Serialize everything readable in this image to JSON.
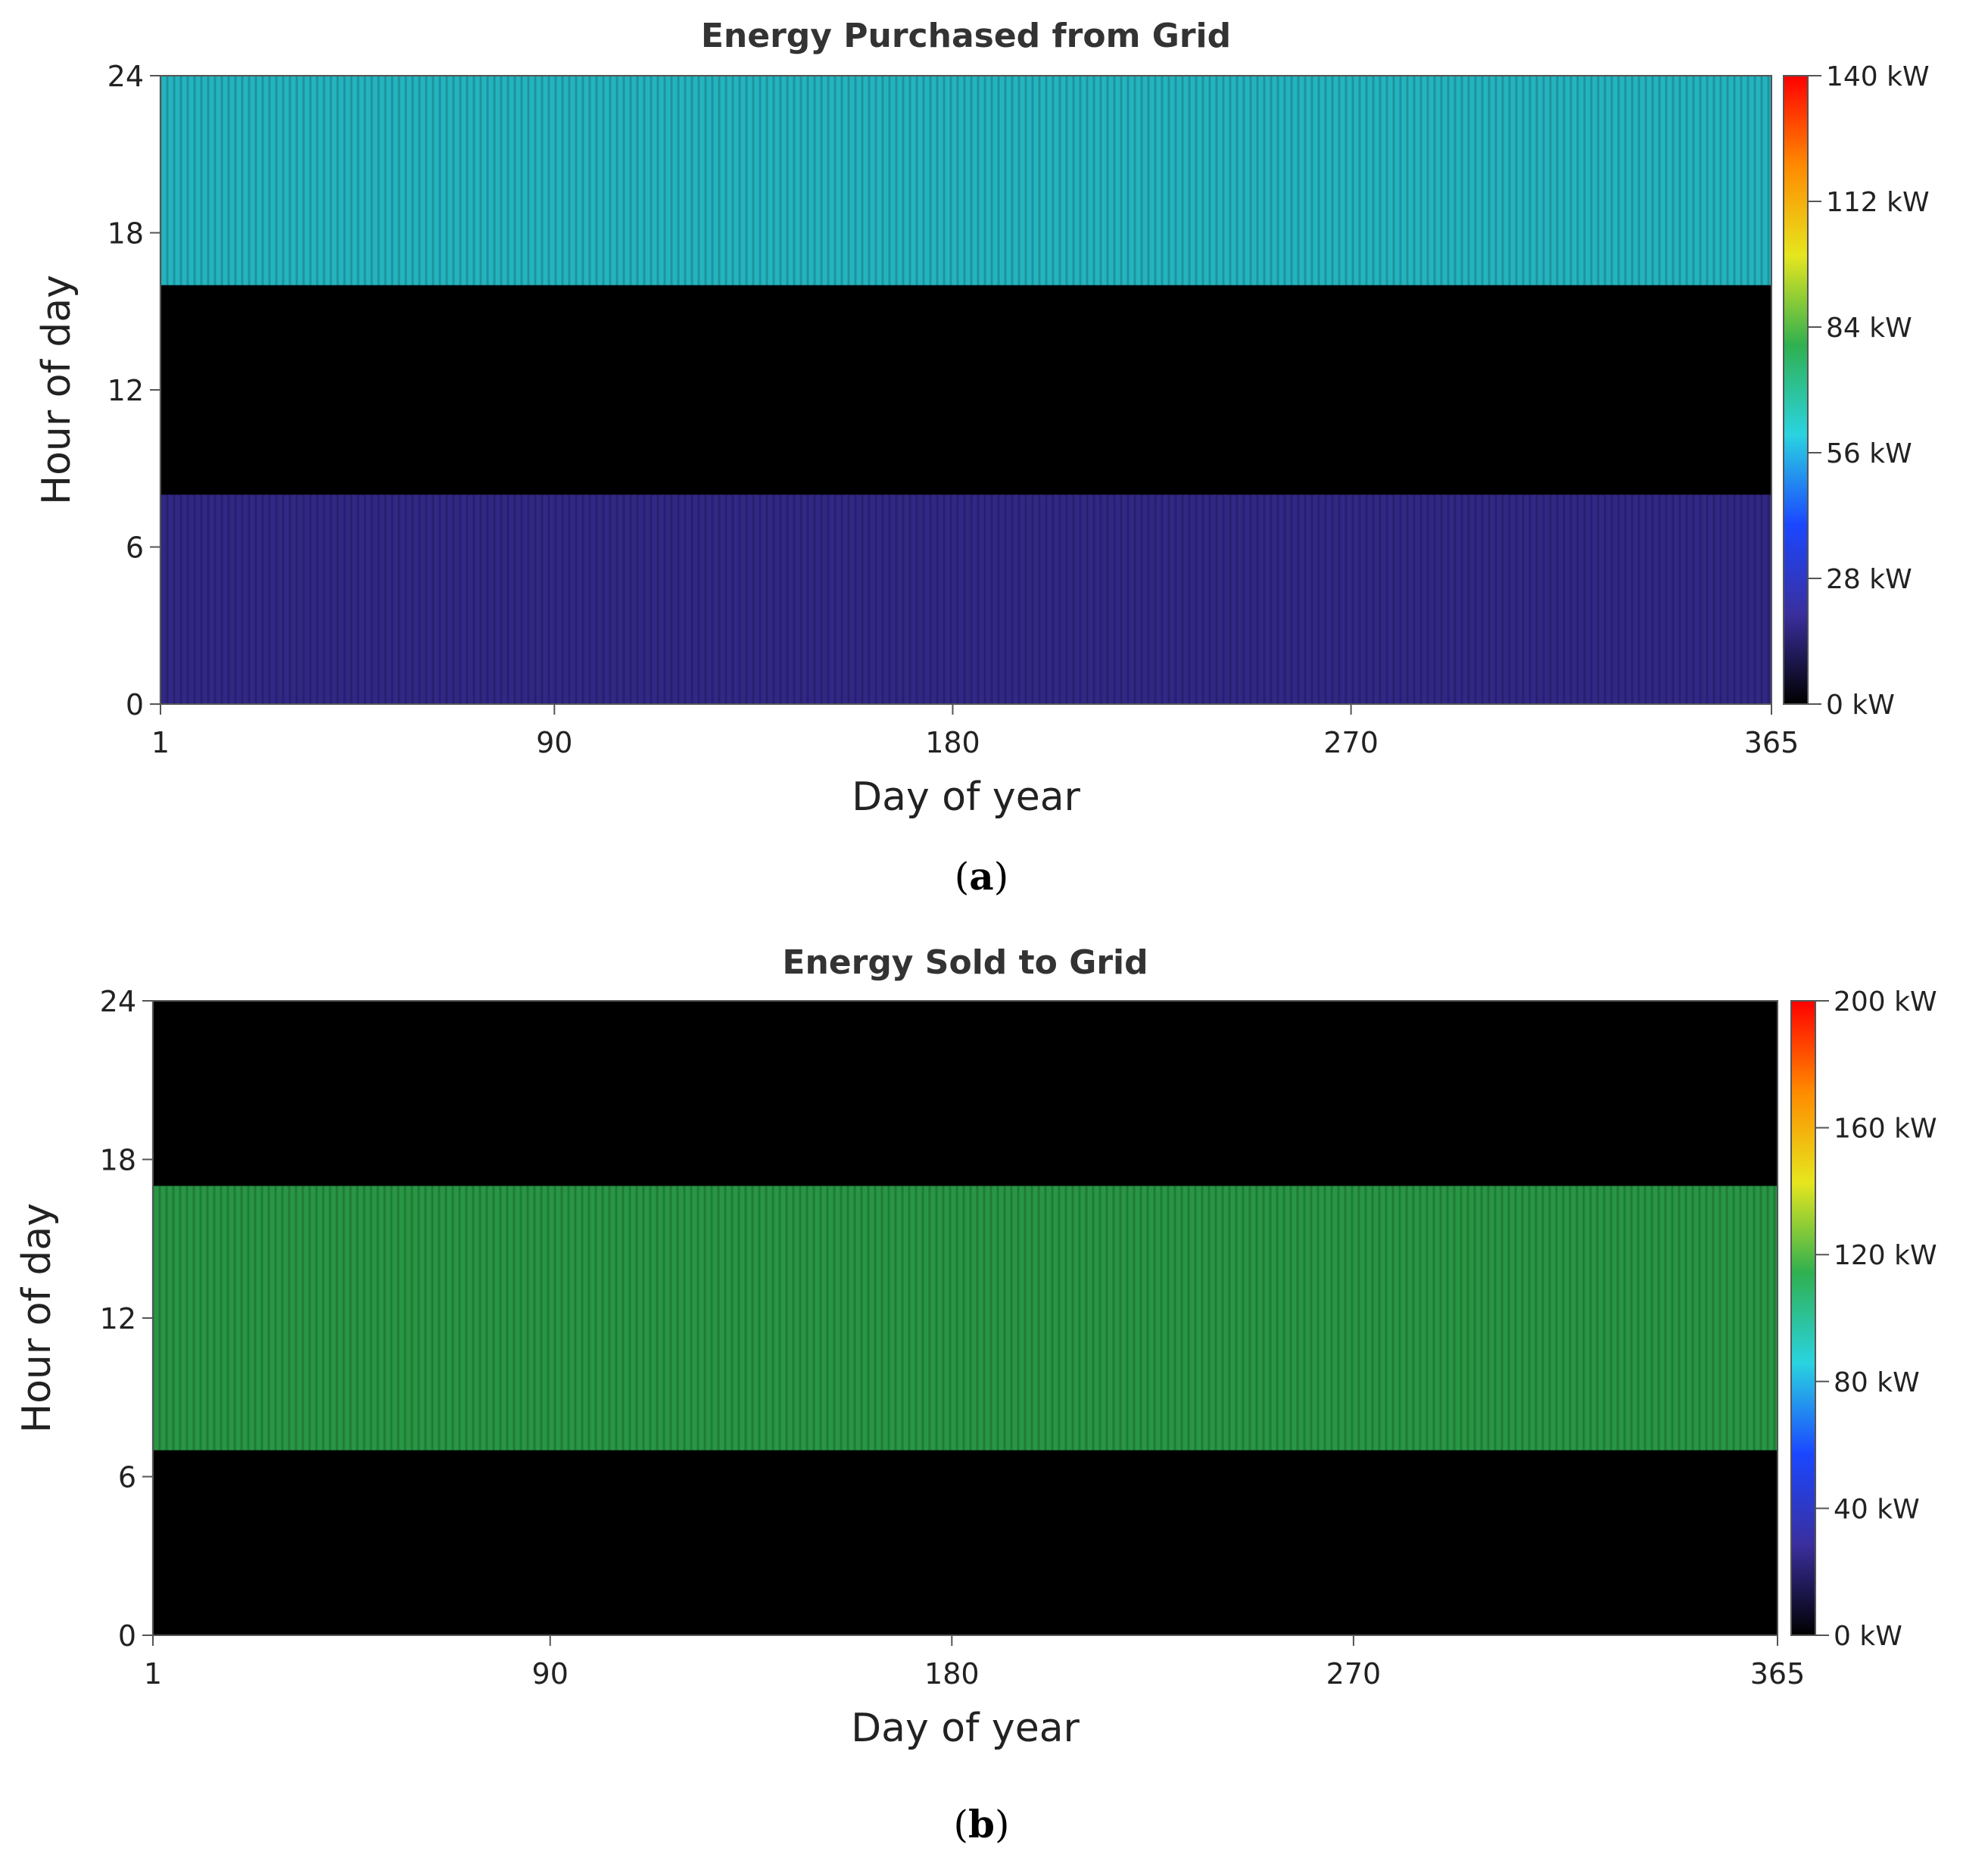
{
  "chart_data": [
    {
      "type": "heatmap",
      "title": "Energy Purchased from Grid",
      "xlabel": "Day of year",
      "ylabel": "Hour of day",
      "x_ticks": [
        "1",
        "90",
        "180",
        "270",
        "365"
      ],
      "y_ticks": [
        "0",
        "6",
        "12",
        "18",
        "24"
      ],
      "x_range": [
        1,
        365
      ],
      "y_range": [
        0,
        24
      ],
      "colorbar": {
        "min": 0,
        "max": 140,
        "unit": "kW",
        "ticks": [
          "0 kW",
          "28 kW",
          "56 kW",
          "84 kW",
          "112 kW",
          "140 kW"
        ]
      },
      "colormap": [
        "#000000",
        "#3a2f9e",
        "#1b47ff",
        "#2ad3e0",
        "#2fb050",
        "#e6e61e",
        "#ff8a00",
        "#ff0000"
      ],
      "caption_letter": "a",
      "profile": [
        {
          "hours": [
            0,
            6
          ],
          "value_kw": 12
        },
        {
          "hours": [
            6,
            8
          ],
          "value_kw": 18
        },
        {
          "hours": [
            8,
            16
          ],
          "value_kw": 4
        },
        {
          "hours": [
            16,
            24
          ],
          "value_kw": 65
        }
      ]
    },
    {
      "type": "heatmap",
      "title": "Energy Sold to Grid",
      "xlabel": "Day of year",
      "ylabel": "Hour of day",
      "x_ticks": [
        "1",
        "90",
        "180",
        "270",
        "365"
      ],
      "y_ticks": [
        "0",
        "6",
        "12",
        "18",
        "24"
      ],
      "x_range": [
        1,
        365
      ],
      "y_range": [
        0,
        24
      ],
      "colorbar": {
        "min": 0,
        "max": 200,
        "unit": "kW",
        "ticks": [
          "0 kW",
          "40 kW",
          "80 kW",
          "120 kW",
          "160 kW",
          "200 kW"
        ]
      },
      "colormap": [
        "#000000",
        "#3a2f9e",
        "#1b47ff",
        "#2ad3e0",
        "#2fb050",
        "#e6e61e",
        "#ff8a00",
        "#ff0000"
      ],
      "caption_letter": "b",
      "profile": [
        {
          "hours": [
            0,
            7
          ],
          "value_kw": 0
        },
        {
          "hours": [
            7,
            17
          ],
          "value_kw": 100
        },
        {
          "hours": [
            17,
            24
          ],
          "value_kw": 0
        }
      ]
    }
  ],
  "captions": [
    {
      "open": "(",
      "letter": "a",
      "close": ")"
    },
    {
      "open": "(",
      "letter": "b",
      "close": ")"
    }
  ]
}
